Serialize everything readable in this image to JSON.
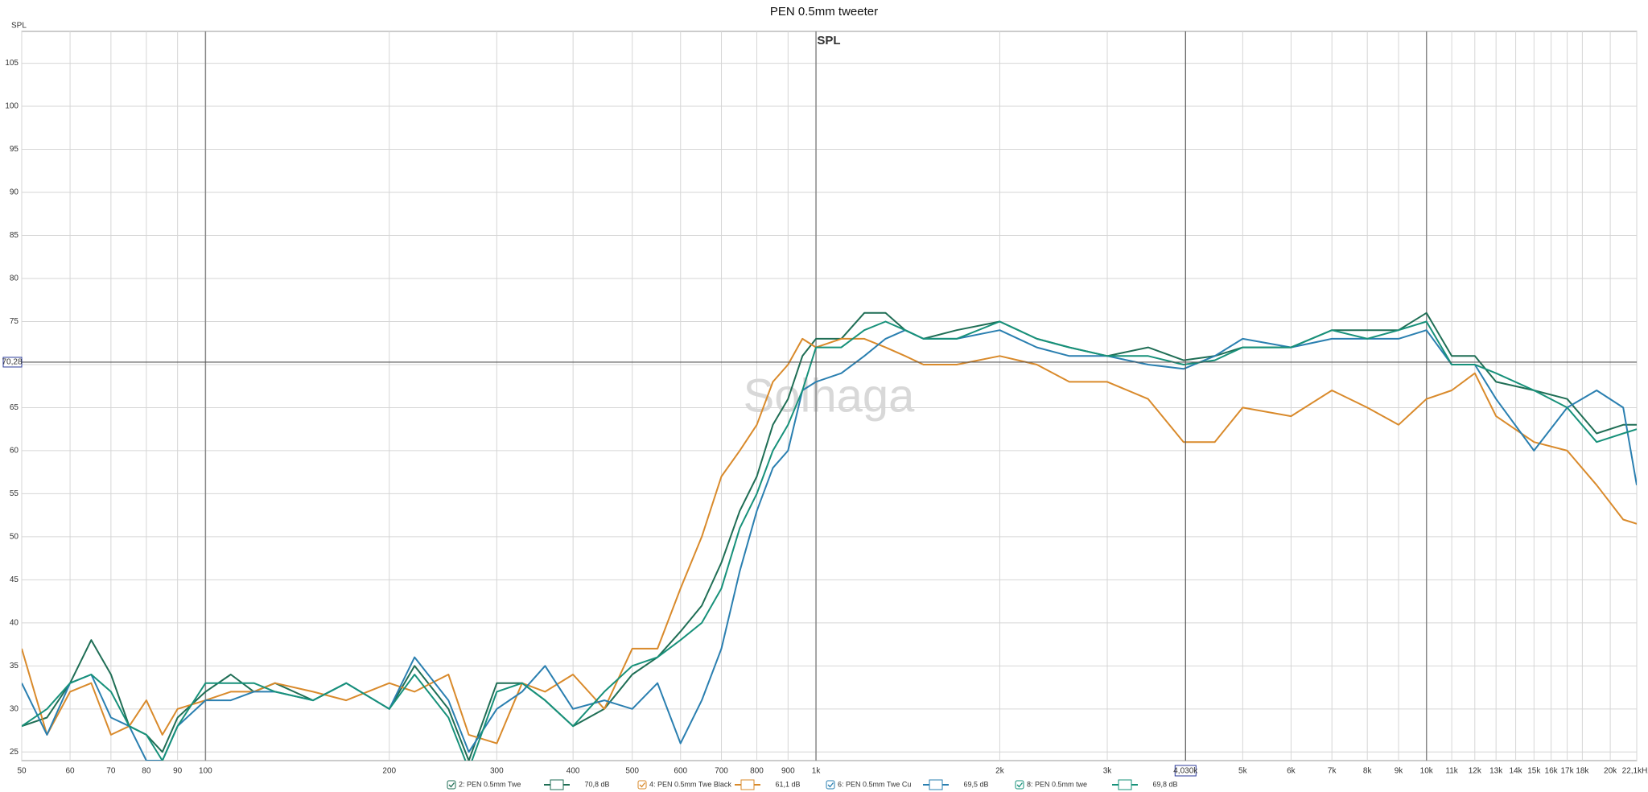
{
  "chart_data": {
    "type": "line",
    "title": "PEN 0.5mm tweeter",
    "subtitle": "SPL",
    "y_label": "SPL",
    "watermark": "Solhaga",
    "log_x": true,
    "grid": true,
    "xlim": [
      50,
      22100
    ],
    "ylim": [
      24,
      108.7
    ],
    "xticks": [
      50,
      60,
      70,
      80,
      90,
      100,
      200,
      300,
      400,
      500,
      600,
      700,
      800,
      900,
      {
        "value": 1000,
        "label": "1k"
      },
      {
        "value": 2000,
        "label": "2k"
      },
      {
        "value": 3000,
        "label": "3k"
      },
      {
        "value": 5000,
        "label": "5k"
      },
      {
        "value": 6000,
        "label": "6k"
      },
      {
        "value": 7000,
        "label": "7k"
      },
      {
        "value": 8000,
        "label": "8k"
      },
      {
        "value": 9000,
        "label": "9k"
      },
      {
        "value": 10000,
        "label": "10k"
      },
      {
        "value": 11000,
        "label": "11k"
      },
      {
        "value": 12000,
        "label": "12k"
      },
      {
        "value": 13000,
        "label": "13k"
      },
      {
        "value": 14000,
        "label": "14k"
      },
      {
        "value": 15000,
        "label": "15k"
      },
      {
        "value": 16000,
        "label": "16k"
      },
      {
        "value": 17000,
        "label": "17k"
      },
      {
        "value": 18000,
        "label": "18k"
      },
      {
        "value": 20000,
        "label": "20k"
      },
      {
        "value": 22100,
        "label": "22,1kHz"
      }
    ],
    "yticks": [
      25,
      30,
      35,
      40,
      45,
      50,
      55,
      60,
      65,
      70,
      75,
      80,
      85,
      90,
      95,
      100,
      105
    ],
    "cursor": {
      "x": {
        "value": 4030,
        "label": "4,030k"
      },
      "y": {
        "value": 70.28,
        "label": "70,28"
      }
    },
    "x": [
      50,
      55,
      60,
      65,
      70,
      75,
      80,
      85,
      90,
      100,
      110,
      120,
      130,
      150,
      170,
      200,
      220,
      250,
      270,
      300,
      330,
      360,
      400,
      450,
      500,
      550,
      600,
      650,
      700,
      750,
      800,
      850,
      900,
      950,
      1000,
      1100,
      1200,
      1300,
      1400,
      1500,
      1700,
      2000,
      2300,
      2600,
      3000,
      3500,
      4000,
      4500,
      5000,
      6000,
      7000,
      8000,
      9000,
      10000,
      11000,
      12000,
      13000,
      15000,
      17000,
      19000,
      21000,
      22100
    ],
    "series": [
      {
        "name": "2: PEN 0.5mm Twe",
        "color": "#1f6e55",
        "cursor_value": {
          "value": 70.8,
          "label": "70,8 dB"
        },
        "values": [
          28,
          29,
          33,
          38,
          34,
          28,
          27,
          25,
          29,
          32,
          34,
          32,
          33,
          31,
          33,
          30,
          35,
          30,
          24,
          33,
          33,
          31,
          28,
          30,
          34,
          36,
          39,
          42,
          47,
          53,
          57,
          63,
          66,
          71,
          73,
          73,
          76,
          76,
          74,
          73,
          74,
          75,
          73,
          72,
          71,
          72,
          70.5,
          71,
          72,
          72,
          74,
          74,
          74,
          76,
          71,
          71,
          68,
          67,
          66,
          62,
          63,
          63
        ]
      },
      {
        "name": "4: PEN 0.5mm Twe Black",
        "color": "#d98a2b",
        "cursor_value": {
          "value": 61.1,
          "label": "61,1 dB"
        },
        "values": [
          37,
          27,
          32,
          33,
          27,
          28,
          31,
          27,
          30,
          31,
          32,
          32,
          33,
          32,
          31,
          33,
          32,
          34,
          27,
          26,
          33,
          32,
          34,
          30,
          37,
          37,
          44,
          50,
          57,
          60,
          63,
          68,
          70,
          73,
          72,
          73,
          73,
          72,
          71,
          70,
          70,
          71,
          70,
          68,
          68,
          66,
          61,
          61,
          65,
          64,
          67,
          65,
          63,
          66,
          67,
          69,
          64,
          61,
          60,
          56,
          52,
          51.5
        ]
      },
      {
        "name": "6: PEN 0.5mm Twe Cu",
        "color": "#2a7fb0",
        "cursor_value": {
          "value": 69.5,
          "label": "69,5 dB"
        },
        "values": [
          33,
          27,
          33,
          34,
          29,
          28,
          24,
          24,
          28,
          31,
          31,
          32,
          32,
          31,
          33,
          30,
          36,
          31,
          25,
          30,
          32,
          35,
          30,
          31,
          30,
          33,
          26,
          31,
          37,
          46,
          53,
          58,
          60,
          67,
          68,
          69,
          71,
          73,
          74,
          73,
          73,
          74,
          72,
          71,
          71,
          70,
          69.5,
          71,
          73,
          72,
          73,
          73,
          73,
          74,
          70,
          70,
          66,
          60,
          65,
          67,
          65,
          56
        ]
      },
      {
        "name": "8: PEN 0.5mm twe",
        "color": "#17917a",
        "cursor_value": {
          "value": 69.8,
          "label": "69,8 dB"
        },
        "values": [
          28,
          30,
          33,
          34,
          32,
          28,
          27,
          24,
          28,
          33,
          33,
          33,
          32,
          31,
          33,
          30,
          34,
          29,
          23,
          32,
          33,
          31,
          28,
          32,
          35,
          36,
          38,
          40,
          44,
          51,
          55,
          60,
          63,
          67,
          72,
          72,
          74,
          75,
          74,
          73,
          73,
          75,
          73,
          72,
          71,
          71,
          70,
          70.5,
          72,
          72,
          74,
          73,
          74,
          75,
          70,
          70,
          69,
          67,
          65,
          61,
          62,
          62.5
        ]
      }
    ]
  }
}
